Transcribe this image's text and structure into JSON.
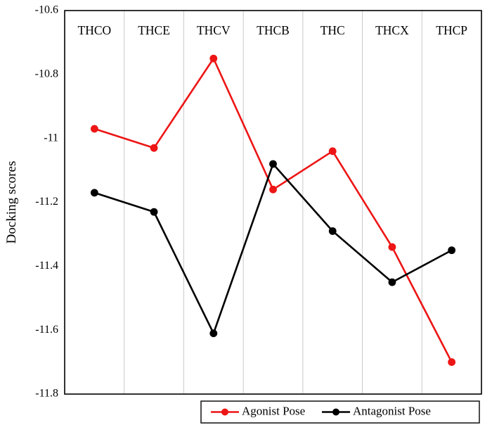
{
  "chart_data": {
    "type": "line",
    "categories": [
      "THCO",
      "THCE",
      "THCV",
      "THCB",
      "THC",
      "THCX",
      "THCP"
    ],
    "series": [
      {
        "name": "Agonist Pose",
        "color": "#ed1515",
        "values": [
          -10.97,
          -11.03,
          -10.75,
          -11.16,
          -11.04,
          -11.34,
          -11.7
        ]
      },
      {
        "name": "Antagonist Pose",
        "color": "#000000",
        "values": [
          -11.17,
          -11.23,
          -11.61,
          -11.08,
          -11.29,
          -11.45,
          -11.35
        ]
      }
    ],
    "title": "",
    "xlabel": "",
    "ylabel": "Docking scores",
    "ylim": [
      -11.8,
      -10.6
    ],
    "ytick_step": 0.2,
    "ytick_labels": [
      "-10.6",
      "-10.8",
      "-11",
      "-11.2",
      "-11.4",
      "-11.6",
      "-11.8"
    ],
    "grid": "vertical-category-separators",
    "gridline_color": "#c9c9c9",
    "plot_border_color": "#000000",
    "legend_position": "bottom-right-outside"
  }
}
